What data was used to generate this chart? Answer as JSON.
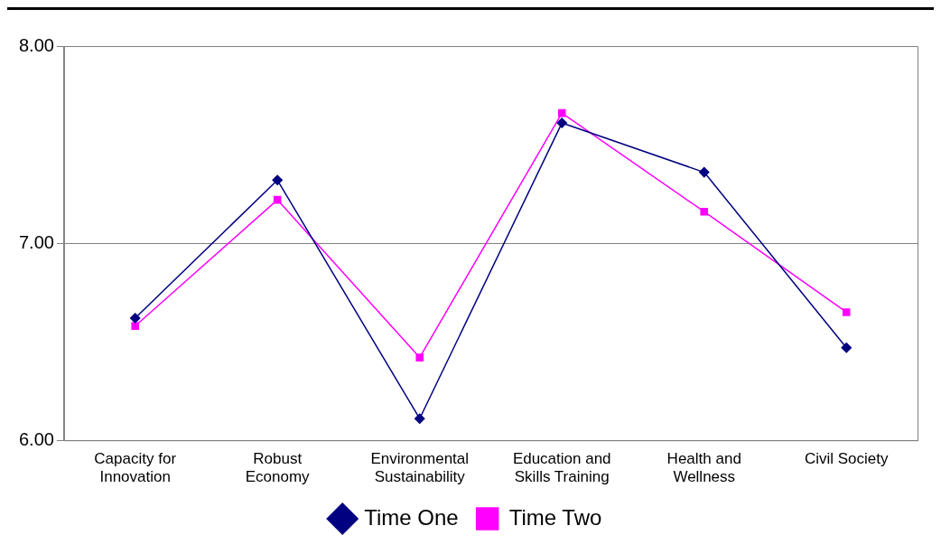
{
  "chart_data": {
    "type": "line",
    "categories": [
      "Capacity for Innovation",
      "Robust Economy",
      "Environmental Sustainability",
      "Education and Skills Training",
      "Health and Wellness",
      "Civil Society"
    ],
    "series": [
      {
        "name": "Time One",
        "color": "#000080",
        "marker": "diamond",
        "values": [
          6.62,
          7.32,
          6.11,
          7.61,
          7.36,
          6.47
        ]
      },
      {
        "name": "Time Two",
        "color": "#ff00ff",
        "marker": "square",
        "values": [
          6.58,
          7.22,
          6.42,
          7.66,
          7.16,
          6.65
        ]
      }
    ],
    "ylim": [
      6,
      8
    ],
    "yticks": [
      {
        "value": 6,
        "label": "6.00"
      },
      {
        "value": 7,
        "label": "7.00"
      },
      {
        "value": 8,
        "label": "8.00"
      }
    ],
    "grid": "y",
    "legend": "bottom",
    "line_style": "solid"
  }
}
